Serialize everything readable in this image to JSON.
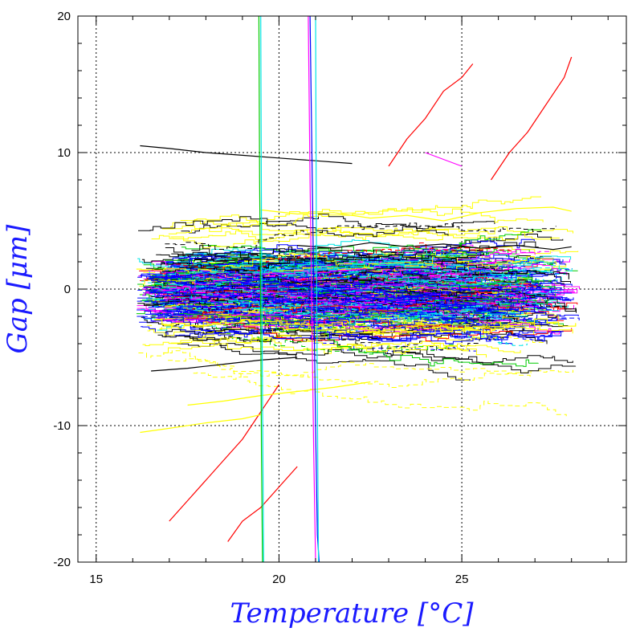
{
  "chart_data": {
    "type": "line",
    "xlabel": "Temperature [°C]",
    "ylabel": "Gap [μm]",
    "xlim": [
      14.5,
      29.5
    ],
    "ylim": [
      -20,
      20
    ],
    "x_ticks": [
      15,
      20,
      25
    ],
    "y_ticks": [
      -20,
      -10,
      0,
      10,
      20
    ],
    "grid": "dotted",
    "legend": "none",
    "series_colors": [
      "#0000ff",
      "#00cc00",
      "#00e5e5",
      "#ff00ff",
      "#ff0000",
      "#ffff00",
      "#000000"
    ],
    "series_count_estimate": 400,
    "series": [
      {
        "color": "#ff0000",
        "x": [
          17.0,
          17.5,
          18.0,
          18.5,
          19.0,
          19.5,
          20.0
        ],
        "y": [
          -17,
          -15.5,
          -14,
          -12.5,
          -11,
          -9,
          -7
        ]
      },
      {
        "color": "#ff0000",
        "x": [
          18.6,
          19.0,
          19.5,
          20.0,
          20.5
        ],
        "y": [
          -18.5,
          -17,
          -16,
          -14.5,
          -13
        ]
      },
      {
        "color": "#ff0000",
        "x": [
          23.0,
          23.5,
          24.0,
          24.5,
          25.0,
          25.3
        ],
        "y": [
          9,
          11,
          12.5,
          14.5,
          15.5,
          16.5
        ]
      },
      {
        "color": "#ff0000",
        "x": [
          25.8,
          26.3,
          26.8,
          27.3,
          27.8,
          28.0
        ],
        "y": [
          8,
          10,
          11.5,
          13.5,
          15.5,
          17
        ]
      },
      {
        "color": "#ff00ff",
        "x": [
          24.0,
          24.5,
          25.0
        ],
        "y": [
          10,
          9.5,
          9
        ]
      },
      {
        "color": "#ffff00",
        "x": [
          16.2,
          17.0,
          18.0,
          19.0,
          19.5
        ],
        "y": [
          -10.5,
          -10.2,
          -9.8,
          -9.5,
          -9.2
        ]
      },
      {
        "color": "#ffff00",
        "x": [
          17.5,
          18.5,
          19.5,
          20.5,
          21.5,
          22.5
        ],
        "y": [
          -8.5,
          -8.2,
          -7.8,
          -7.5,
          -7.2,
          -6.8
        ]
      },
      {
        "color": "#ffff00",
        "x": [
          19.5,
          20.5,
          21.5,
          22.5,
          23.5,
          24.5,
          25.5,
          26.5,
          27.5,
          28.0
        ],
        "y": [
          5.8,
          5.5,
          5.6,
          5.2,
          5.4,
          5.0,
          5.6,
          5.9,
          6.0,
          5.7
        ]
      },
      {
        "color": "#000000",
        "x": [
          16.2,
          17.0,
          18.0,
          19.0,
          20.0,
          21.0,
          22.0
        ],
        "y": [
          10.5,
          10.3,
          10.0,
          9.8,
          9.6,
          9.4,
          9.2
        ]
      },
      {
        "color": "#000000",
        "x": [
          16.5,
          17.5,
          18.5,
          19.5,
          20.5
        ],
        "y": [
          -6,
          -5.8,
          -5.5,
          -5.2,
          -5.0
        ]
      },
      {
        "color": "#000000",
        "x": [
          20.5,
          21.5,
          22.5,
          23.5,
          24.5,
          25.5,
          26.5,
          27.5,
          28.0
        ],
        "y": [
          3.2,
          3.0,
          3.4,
          3.1,
          3.3,
          3.0,
          3.2,
          2.9,
          3.1
        ]
      },
      {
        "color": "#0000ff",
        "x": [
          16.2,
          17.0,
          18.0,
          19.0,
          20.0,
          21.0,
          22.0,
          23.0,
          24.0,
          25.0
        ],
        "y": [
          1.0,
          0.8,
          1.2,
          0.5,
          0.9,
          0.2,
          -0.4,
          -0.8,
          -1.0,
          -1.3
        ]
      },
      {
        "color": "#0000ff",
        "x": [
          20.85,
          20.9,
          20.95,
          21.0,
          21.05,
          21.1
        ],
        "y": [
          20,
          10,
          0,
          -10,
          -18,
          -20
        ]
      },
      {
        "color": "#ff00ff",
        "x": [
          20.8,
          20.85,
          20.9,
          20.95,
          21.0
        ],
        "y": [
          20,
          8,
          -2,
          -12,
          -20
        ]
      },
      {
        "color": "#00cc00",
        "x": [
          19.45,
          19.47,
          19.5,
          19.52,
          19.55
        ],
        "y": [
          20,
          8,
          -2,
          -12,
          -20
        ]
      },
      {
        "color": "#00e5e5",
        "x": [
          19.5,
          19.52,
          19.55,
          19.58
        ],
        "y": [
          20,
          5,
          -8,
          -20
        ]
      },
      {
        "color": "#00e5e5",
        "x": [
          21.0,
          21.02,
          21.05,
          21.08
        ],
        "y": [
          20,
          5,
          -8,
          -20
        ]
      }
    ]
  }
}
